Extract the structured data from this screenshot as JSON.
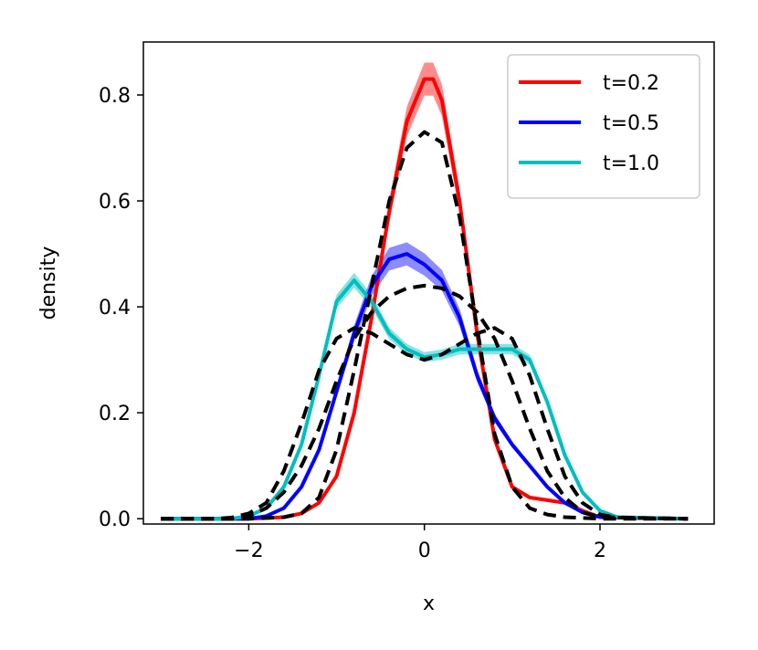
{
  "chart_data": {
    "type": "line",
    "xlabel": "x",
    "ylabel": "density",
    "xlim": [
      -3.2,
      3.3
    ],
    "ylim": [
      -0.01,
      0.9
    ],
    "xticks": [
      -2,
      0,
      2
    ],
    "xtick_labels": [
      "−2",
      "0",
      "2"
    ],
    "yticks": [
      0.0,
      0.2,
      0.4,
      0.6,
      0.8
    ],
    "ytick_labels": [
      "0.0",
      "0.2",
      "0.4",
      "0.6",
      "0.8"
    ],
    "grid": false,
    "legend_position": "top-right",
    "series": [
      {
        "name": "t=0.2",
        "color": "#ff0000",
        "style": "solid",
        "band": 0.03,
        "x": [
          -3,
          -2,
          -1.6,
          -1.4,
          -1.2,
          -1.0,
          -0.8,
          -0.6,
          -0.4,
          -0.2,
          0.0,
          0.1,
          0.2,
          0.4,
          0.6,
          0.8,
          1.0,
          1.2,
          1.4,
          1.6,
          1.8,
          2.0,
          3.0
        ],
        "y": [
          0.0,
          0.0,
          0.003,
          0.01,
          0.03,
          0.08,
          0.2,
          0.38,
          0.58,
          0.75,
          0.83,
          0.83,
          0.79,
          0.6,
          0.35,
          0.15,
          0.06,
          0.04,
          0.035,
          0.03,
          0.015,
          0.003,
          0.0
        ]
      },
      {
        "name": "t=0.5",
        "color": "#0000ff",
        "style": "solid",
        "band": 0.035,
        "x": [
          -3,
          -2,
          -1.8,
          -1.6,
          -1.4,
          -1.2,
          -1.0,
          -0.8,
          -0.6,
          -0.4,
          -0.2,
          0.0,
          0.2,
          0.4,
          0.6,
          0.8,
          1.0,
          1.2,
          1.4,
          1.6,
          1.8,
          2.0,
          3.0
        ],
        "y": [
          0.0,
          0.0,
          0.005,
          0.02,
          0.06,
          0.13,
          0.24,
          0.35,
          0.44,
          0.49,
          0.5,
          0.48,
          0.45,
          0.38,
          0.27,
          0.19,
          0.14,
          0.1,
          0.06,
          0.03,
          0.012,
          0.003,
          0.0
        ]
      },
      {
        "name": "t=1.0",
        "color": "#00bfbf",
        "style": "solid",
        "band": 0.025,
        "x": [
          -3,
          -2.2,
          -2.0,
          -1.8,
          -1.6,
          -1.4,
          -1.2,
          -1.0,
          -0.8,
          -0.6,
          -0.4,
          -0.2,
          0.0,
          0.2,
          0.4,
          0.6,
          0.8,
          1.0,
          1.2,
          1.4,
          1.6,
          1.8,
          2.0,
          2.2,
          3.0
        ],
        "y": [
          0.0,
          0.0,
          0.005,
          0.02,
          0.06,
          0.14,
          0.27,
          0.41,
          0.45,
          0.41,
          0.35,
          0.32,
          0.305,
          0.31,
          0.32,
          0.32,
          0.32,
          0.32,
          0.3,
          0.22,
          0.12,
          0.05,
          0.015,
          0.003,
          0.0
        ]
      },
      {
        "color": "#000000",
        "style": "dashed",
        "x": [
          -3,
          -2.0,
          -1.6,
          -1.4,
          -1.2,
          -1.0,
          -0.8,
          -0.6,
          -0.4,
          -0.2,
          0.0,
          0.2,
          0.4,
          0.6,
          0.8,
          1.0,
          1.2,
          1.4,
          1.6,
          2.0,
          3.0
        ],
        "y": [
          0.0,
          0.0,
          0.003,
          0.01,
          0.04,
          0.13,
          0.28,
          0.44,
          0.6,
          0.7,
          0.73,
          0.71,
          0.57,
          0.36,
          0.16,
          0.06,
          0.02,
          0.008,
          0.003,
          0.0,
          0.0
        ]
      },
      {
        "color": "#000000",
        "style": "dashed",
        "x": [
          -3,
          -2.2,
          -2.0,
          -1.8,
          -1.6,
          -1.4,
          -1.2,
          -1.0,
          -0.8,
          -0.6,
          -0.4,
          -0.2,
          0.0,
          0.2,
          0.4,
          0.6,
          0.8,
          1.0,
          1.2,
          1.4,
          1.6,
          1.8,
          2.0,
          3.0
        ],
        "y": [
          0.0,
          0.0,
          0.005,
          0.02,
          0.05,
          0.1,
          0.17,
          0.26,
          0.34,
          0.39,
          0.42,
          0.435,
          0.44,
          0.435,
          0.42,
          0.39,
          0.34,
          0.26,
          0.17,
          0.09,
          0.04,
          0.012,
          0.003,
          0.0
        ]
      },
      {
        "color": "#000000",
        "style": "dashed",
        "x": [
          -3,
          -2.4,
          -2.2,
          -2.0,
          -1.8,
          -1.6,
          -1.4,
          -1.2,
          -1.0,
          -0.8,
          -0.6,
          -0.4,
          -0.2,
          0.0,
          0.2,
          0.4,
          0.6,
          0.8,
          1.0,
          1.2,
          1.4,
          1.6,
          1.8,
          2.0,
          2.2,
          3.0
        ],
        "y": [
          0.0,
          0.0,
          0.002,
          0.01,
          0.03,
          0.09,
          0.18,
          0.28,
          0.34,
          0.36,
          0.35,
          0.33,
          0.31,
          0.3,
          0.31,
          0.33,
          0.35,
          0.36,
          0.34,
          0.27,
          0.17,
          0.08,
          0.03,
          0.008,
          0.002,
          0.0
        ]
      }
    ]
  }
}
